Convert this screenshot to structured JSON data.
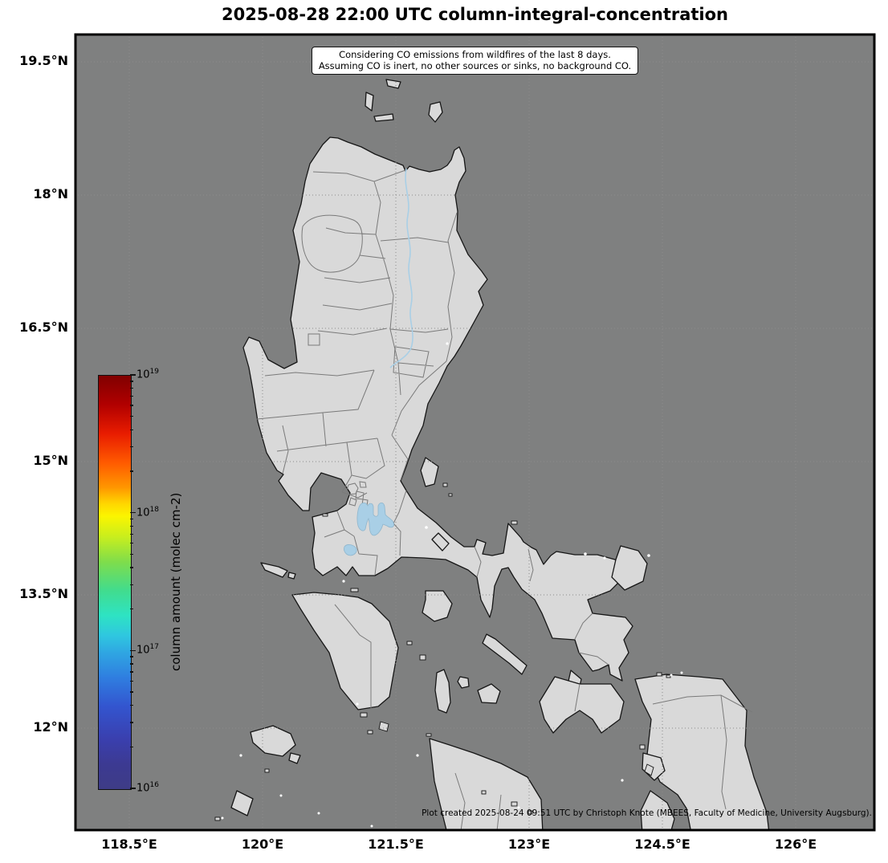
{
  "title": "2025-08-28 22:00 UTC column-integral-concentration",
  "note_box": {
    "line1": "Considering CO emissions from wildfires of the last 8 days.",
    "line2": "Assuming CO is inert, no other sources or sinks, no background CO."
  },
  "x_axis": {
    "labels": [
      "118.5°E",
      "120°E",
      "121.5°E",
      "123°E",
      "124.5°E",
      "126°E"
    ]
  },
  "y_axis": {
    "labels": [
      "19.5°N",
      "18°N",
      "16.5°N",
      "15°N",
      "13.5°N",
      "12°N"
    ]
  },
  "colorbar": {
    "label": "column amount (molec cm-2)",
    "min_exp": 16,
    "max_exp": 19,
    "ticks": [
      {
        "base": "10",
        "exp": "19"
      },
      {
        "base": "10",
        "exp": "18"
      },
      {
        "base": "10",
        "exp": "17"
      },
      {
        "base": "10",
        "exp": "16"
      }
    ]
  },
  "credit": "Plot created 2025-08-24 09:51 UTC by Christoph Knote (MBEES, Faculty of Medicine, University Augsburg).",
  "colors": {
    "ocean": "#7f8080",
    "land": "#d9d9d9",
    "coastline": "#161616",
    "province_border": "#7a7a7a",
    "water": "#a9cfe6",
    "graticule": "#8c8c8c",
    "frame": "#000000"
  }
}
